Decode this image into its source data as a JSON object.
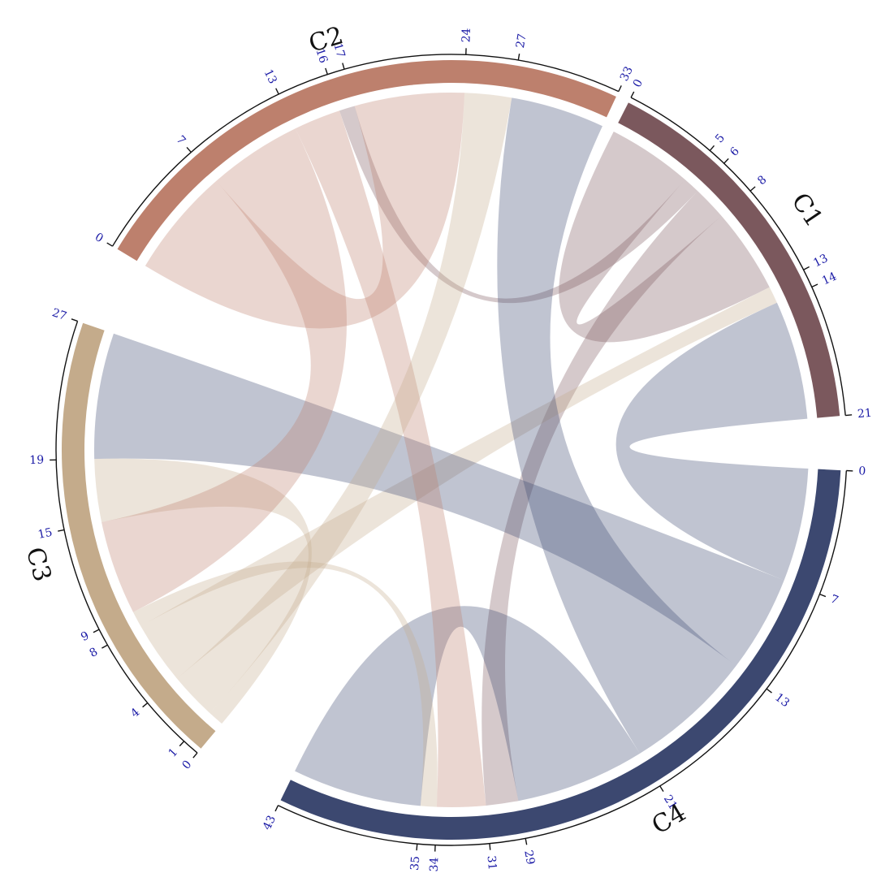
{
  "diagram": {
    "type": "chord",
    "groups": [
      {
        "id": "c1",
        "label": "C1",
        "total": 21,
        "color": "#7b585d",
        "ticks": [
          0,
          5,
          6,
          8,
          13,
          14,
          21
        ],
        "tick_labels": [
          "0",
          "5",
          "6",
          "8",
          "13",
          "14",
          "21"
        ]
      },
      {
        "id": "c4",
        "label": "C4",
        "total": 43,
        "color": "#3c4870",
        "ticks": [
          0,
          7,
          13,
          21,
          29,
          31,
          34,
          35,
          43
        ],
        "tick_labels": [
          "0",
          "7",
          "13",
          "21",
          "29",
          "31",
          "34",
          "35",
          "43"
        ]
      },
      {
        "id": "c3",
        "label": "C3",
        "total": 27,
        "color": "#c4ab8b",
        "ticks": [
          0,
          1,
          4,
          8,
          9,
          15,
          19,
          27
        ],
        "tick_labels": [
          "0",
          "1",
          "4",
          "8",
          "9",
          "15",
          "19",
          "27"
        ]
      },
      {
        "id": "c2",
        "label": "C2",
        "total": 33,
        "color": "#bd806d",
        "ticks": [
          0,
          7,
          13,
          16,
          17,
          24,
          27,
          33
        ],
        "tick_labels": [
          "0",
          "7",
          "13",
          "16",
          "17",
          "24",
          "27",
          "33"
        ]
      }
    ],
    "links": [
      {
        "source": "c1",
        "s_start": 0,
        "s_end": 5,
        "target": "c1",
        "t_start": 8,
        "t_end": 13,
        "color": "#7b585d"
      },
      {
        "source": "c1",
        "s_start": 5,
        "s_end": 6,
        "target": "c2",
        "t_start": 16,
        "t_end": 17,
        "color": "#7b585d"
      },
      {
        "source": "c1",
        "s_start": 6,
        "s_end": 8,
        "target": "c4",
        "t_start": 29,
        "t_end": 31,
        "color": "#7b585d"
      },
      {
        "source": "c1",
        "s_start": 13,
        "s_end": 14,
        "target": "c3",
        "t_start": 4,
        "t_end": 8,
        "color": "#c4ab8b"
      },
      {
        "source": "c1",
        "s_start": 14,
        "s_end": 21,
        "target": "c4",
        "t_start": 0,
        "t_end": 7,
        "color": "#3c4870"
      },
      {
        "source": "c4",
        "s_start": 7,
        "s_end": 13,
        "target": "c3",
        "t_start": 19,
        "t_end": 27,
        "color": "#3c4870"
      },
      {
        "source": "c4",
        "s_start": 13,
        "s_end": 21,
        "target": "c2",
        "t_start": 27,
        "t_end": 33,
        "color": "#3c4870"
      },
      {
        "source": "c4",
        "s_start": 21,
        "s_end": 29,
        "target": "c4",
        "t_start": 35,
        "t_end": 43,
        "color": "#3c4870"
      },
      {
        "source": "c4",
        "s_start": 31,
        "s_end": 34,
        "target": "c2",
        "t_start": 13,
        "t_end": 16,
        "color": "#bd806d"
      },
      {
        "source": "c4",
        "s_start": 34,
        "s_end": 35,
        "target": "c3",
        "t_start": 8,
        "t_end": 9,
        "color": "#c4ab8b"
      },
      {
        "source": "c3",
        "s_start": 0,
        "s_end": 1,
        "target": "c3",
        "t_start": 15,
        "t_end": 19,
        "color": "#c4ab8b"
      },
      {
        "source": "c3",
        "s_start": 1,
        "s_end": 4,
        "target": "c2",
        "t_start": 24,
        "t_end": 27,
        "color": "#c4ab8b"
      },
      {
        "source": "c3",
        "s_start": 9,
        "s_end": 15,
        "target": "c2",
        "t_start": 7,
        "t_end": 13,
        "color": "#bd806d"
      },
      {
        "source": "c2",
        "s_start": 0,
        "s_end": 7,
        "target": "c2",
        "t_start": 17,
        "t_end": 24,
        "color": "#bd806d"
      }
    ]
  }
}
